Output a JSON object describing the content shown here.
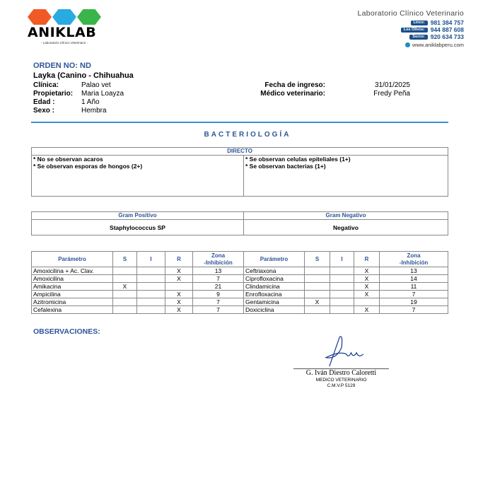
{
  "header": {
    "brand": "ANIKLAB",
    "brand_sub": "- Laboratorio Clínico Veterinario -",
    "lab_title": "Laboratorio Clínico Veterinario",
    "phones": [
      {
        "branch": "Lince:",
        "number": "981 384 757"
      },
      {
        "branch": "Los Olivos:",
        "number": "944 887 608"
      },
      {
        "branch": "Surco:",
        "number": "920 634 733"
      }
    ],
    "website": "www.aniklabperu.com",
    "logo_colors": [
      "#f15a24",
      "#29abe2",
      "#39b54a"
    ]
  },
  "patient": {
    "orden": "ORDEN NO: ND",
    "name": "Layka (Canino - Chihuahua",
    "clinica_label": "Clínica:",
    "clinica": "Palao vet",
    "propietario_label": "Propietario:",
    "propietario": "Maria Loayza",
    "edad_label": "Edad :",
    "edad": "1 Año",
    "sexo_label": "Sexo :",
    "sexo": "Hembra",
    "fecha_label": "Fecha de ingreso:",
    "fecha": "31/01/2025",
    "medico_label": "Médico veterinario:",
    "medico": "Fredy Peña"
  },
  "section_title": "BACTERIOLOGÍA",
  "directo": {
    "title": "DIRECTO",
    "left": [
      "* No se observan acaros",
      "* Se observan esporas de hongos (2+)"
    ],
    "right": [
      "* Se observan celulas epiteliales (1+)",
      "* Se observan bacterias (1+)"
    ]
  },
  "gram": {
    "positivo_label": "Gram Positivo",
    "positivo": "Staphylococcus SP",
    "negativo_label": "Gram Negativo",
    "negativo": "Negativo"
  },
  "antibiogram": {
    "headers": [
      "Parámetro",
      "S",
      "I",
      "R",
      "Zona",
      "-Inhibición"
    ],
    "rows": [
      [
        [
          "Amoxicilina + Ac. Clav.",
          "",
          "",
          "X",
          "13"
        ],
        [
          "Ceftriaxona",
          "",
          "",
          "X",
          "13"
        ]
      ],
      [
        [
          "Amoxicilina",
          "",
          "",
          "X",
          "7"
        ],
        [
          "Ciprofloxacina",
          "",
          "",
          "X",
          "14"
        ]
      ],
      [
        [
          "Amikacina",
          "X",
          "",
          "",
          "21"
        ],
        [
          "Clindamicina",
          "",
          "",
          "X",
          "11"
        ]
      ],
      [
        [
          "Ampicilina",
          "",
          "",
          "X",
          "9"
        ],
        [
          "Enrofloxacina",
          "",
          "",
          "X",
          "7"
        ]
      ],
      [
        [
          "Azitromicina",
          "",
          "",
          "X",
          "7"
        ],
        [
          "Gentamicina",
          "X",
          "",
          "",
          "19"
        ]
      ],
      [
        [
          "Cefalexina",
          "",
          "",
          "X",
          "7"
        ],
        [
          "Doxiciclina",
          "",
          "",
          "X",
          "7"
        ]
      ]
    ]
  },
  "observaciones_label": "OBSERVACIONES:",
  "signature": {
    "name": "G. Iván Diestro Caloretti",
    "title": "MEDICO VETERINARIO",
    "license": "C.M.V.P 5129"
  }
}
